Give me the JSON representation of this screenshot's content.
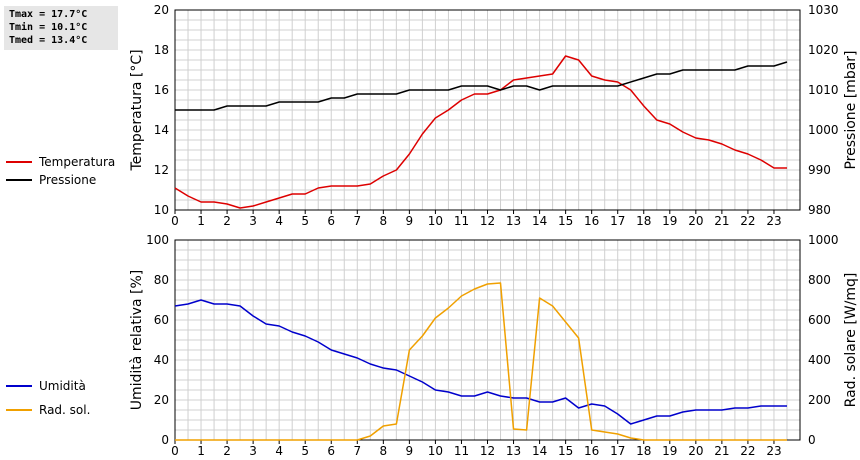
{
  "stats": {
    "tmax": "Tmax = 17.7°C",
    "tmin": "Tmin = 10.1°C",
    "tmed": "Tmed = 13.4°C"
  },
  "colors": {
    "temperature": "#dd0000",
    "pressure": "#000000",
    "humidity": "#0000cc",
    "radiation": "#f0a000",
    "grid": "#d0d0d0",
    "stats_bg": "#e6e6e6"
  },
  "chart_data": [
    {
      "type": "line",
      "xlim": [
        0,
        24
      ],
      "x_ticks": [
        "0",
        "1",
        "2",
        "3",
        "4",
        "5",
        "6",
        "7",
        "8",
        "9",
        "10",
        "11",
        "12",
        "13",
        "14",
        "15",
        "16",
        "17",
        "18",
        "19",
        "20",
        "21",
        "22",
        "23"
      ],
      "ylabel_left": "Temperatura [°C]",
      "ylabel_right": "Pressione [mbar]",
      "ylim_left": [
        10,
        20
      ],
      "ylim_right": [
        980,
        1030
      ],
      "y_ticks_left": [
        "10",
        "12",
        "14",
        "16",
        "18",
        "20"
      ],
      "y_ticks_right": [
        "980",
        "990",
        "1000",
        "1010",
        "1020",
        "1030"
      ],
      "grid": true,
      "legend_position": "left",
      "series": [
        {
          "name": "Temperatura",
          "axis": "left",
          "color": "#dd0000",
          "points": [
            [
              0,
              11.1
            ],
            [
              0.5,
              10.7
            ],
            [
              1,
              10.4
            ],
            [
              1.5,
              10.4
            ],
            [
              2,
              10.3
            ],
            [
              2.5,
              10.1
            ],
            [
              3,
              10.2
            ],
            [
              3.5,
              10.4
            ],
            [
              4,
              10.6
            ],
            [
              4.5,
              10.8
            ],
            [
              5,
              10.8
            ],
            [
              5.5,
              11.1
            ],
            [
              6,
              11.2
            ],
            [
              6.5,
              11.2
            ],
            [
              7,
              11.2
            ],
            [
              7.5,
              11.3
            ],
            [
              8,
              11.7
            ],
            [
              8.5,
              12.0
            ],
            [
              9,
              12.8
            ],
            [
              9.5,
              13.8
            ],
            [
              10,
              14.6
            ],
            [
              10.5,
              15.0
            ],
            [
              11,
              15.5
            ],
            [
              11.5,
              15.8
            ],
            [
              12,
              15.8
            ],
            [
              12.5,
              16.0
            ],
            [
              13,
              16.5
            ],
            [
              13.5,
              16.6
            ],
            [
              14,
              16.7
            ],
            [
              14.5,
              16.8
            ],
            [
              15,
              17.7
            ],
            [
              15.5,
              17.5
            ],
            [
              16,
              16.7
            ],
            [
              16.5,
              16.5
            ],
            [
              17,
              16.4
            ],
            [
              17.5,
              16.0
            ],
            [
              18,
              15.2
            ],
            [
              18.5,
              14.5
            ],
            [
              19,
              14.3
            ],
            [
              19.5,
              13.9
            ],
            [
              20,
              13.6
            ],
            [
              20.5,
              13.5
            ],
            [
              21,
              13.3
            ],
            [
              21.5,
              13.0
            ],
            [
              22,
              12.8
            ],
            [
              22.5,
              12.5
            ],
            [
              23,
              12.1
            ],
            [
              23.5,
              12.1
            ]
          ]
        },
        {
          "name": "Pressione",
          "axis": "right",
          "color": "#000000",
          "points": [
            [
              0,
              1005
            ],
            [
              1.5,
              1005
            ],
            [
              2,
              1006
            ],
            [
              3.5,
              1006
            ],
            [
              4,
              1007
            ],
            [
              5.5,
              1007
            ],
            [
              6,
              1008
            ],
            [
              6.5,
              1008
            ],
            [
              7,
              1009
            ],
            [
              8.5,
              1009
            ],
            [
              9,
              1010
            ],
            [
              10.5,
              1010
            ],
            [
              11,
              1011
            ],
            [
              12,
              1011
            ],
            [
              12.5,
              1010
            ],
            [
              13,
              1011
            ],
            [
              13.5,
              1011
            ],
            [
              14,
              1010
            ],
            [
              14.5,
              1011
            ],
            [
              16.5,
              1011
            ],
            [
              17,
              1011
            ],
            [
              18,
              1013
            ],
            [
              18.5,
              1014
            ],
            [
              19,
              1014
            ],
            [
              19.5,
              1015
            ],
            [
              21.5,
              1015
            ],
            [
              22,
              1016
            ],
            [
              23,
              1016
            ],
            [
              23.5,
              1017
            ]
          ]
        }
      ]
    },
    {
      "type": "line",
      "xlim": [
        0,
        24
      ],
      "x_ticks": [
        "0",
        "1",
        "2",
        "3",
        "4",
        "5",
        "6",
        "7",
        "8",
        "9",
        "10",
        "11",
        "12",
        "13",
        "14",
        "15",
        "16",
        "17",
        "18",
        "19",
        "20",
        "21",
        "22",
        "23"
      ],
      "ylabel_left": "Umidità relativa [%]",
      "ylabel_right": "Rad. solare [W/mq]",
      "ylim_left": [
        0,
        100
      ],
      "ylim_right": [
        0,
        1000
      ],
      "y_ticks_left": [
        "0",
        "20",
        "40",
        "60",
        "80",
        "100"
      ],
      "y_ticks_right": [
        "0",
        "200",
        "400",
        "600",
        "800",
        "1000"
      ],
      "grid": true,
      "legend_position": "left",
      "series": [
        {
          "name": "Umidità",
          "axis": "left",
          "color": "#0000cc",
          "points": [
            [
              0,
              67
            ],
            [
              0.5,
              68
            ],
            [
              1,
              70
            ],
            [
              1.5,
              68
            ],
            [
              2,
              68
            ],
            [
              2.5,
              67
            ],
            [
              3,
              62
            ],
            [
              3.5,
              58
            ],
            [
              4,
              57
            ],
            [
              4.5,
              54
            ],
            [
              5,
              52
            ],
            [
              5.5,
              49
            ],
            [
              6,
              45
            ],
            [
              6.5,
              43
            ],
            [
              7,
              41
            ],
            [
              7.5,
              38
            ],
            [
              8,
              36
            ],
            [
              8.5,
              35
            ],
            [
              9,
              32
            ],
            [
              9.5,
              29
            ],
            [
              10,
              25
            ],
            [
              10.5,
              24
            ],
            [
              11,
              22
            ],
            [
              11.5,
              22
            ],
            [
              12,
              24
            ],
            [
              12.5,
              22
            ],
            [
              13,
              21
            ],
            [
              13.5,
              21
            ],
            [
              14,
              19
            ],
            [
              14.5,
              19
            ],
            [
              15,
              21
            ],
            [
              15.5,
              16
            ],
            [
              16,
              18
            ],
            [
              16.5,
              17
            ],
            [
              17,
              13
            ],
            [
              17.5,
              8
            ],
            [
              18,
              10
            ],
            [
              18.5,
              12
            ],
            [
              19,
              12
            ],
            [
              19.5,
              14
            ],
            [
              20,
              15
            ],
            [
              20.5,
              15
            ],
            [
              21,
              15
            ],
            [
              21.5,
              16
            ],
            [
              22,
              16
            ],
            [
              22.5,
              17
            ],
            [
              23,
              17
            ],
            [
              23.5,
              17
            ]
          ]
        },
        {
          "name": "Rad. sol.",
          "axis": "right",
          "color": "#f0a000",
          "points": [
            [
              0,
              0
            ],
            [
              7,
              0
            ],
            [
              7.5,
              20
            ],
            [
              8,
              70
            ],
            [
              8.5,
              80
            ],
            [
              9,
              450
            ],
            [
              9.5,
              520
            ],
            [
              10,
              610
            ],
            [
              10.5,
              660
            ],
            [
              11,
              720
            ],
            [
              11.5,
              755
            ],
            [
              12,
              780
            ],
            [
              12.5,
              785
            ],
            [
              13,
              55
            ],
            [
              13.5,
              50
            ],
            [
              14,
              710
            ],
            [
              14.5,
              670
            ],
            [
              15,
              590
            ],
            [
              15.5,
              510
            ],
            [
              16,
              50
            ],
            [
              16.5,
              40
            ],
            [
              17,
              30
            ],
            [
              17.5,
              10
            ],
            [
              18,
              0
            ],
            [
              23.5,
              0
            ]
          ]
        }
      ]
    }
  ]
}
